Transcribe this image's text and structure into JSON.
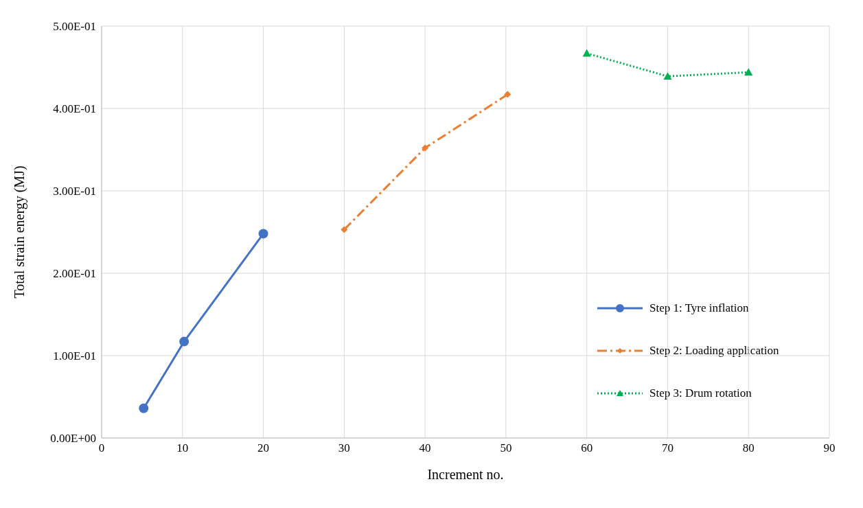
{
  "chart_data": {
    "type": "line",
    "xlabel": "Increment no.",
    "ylabel": "Total strain energy (MJ)",
    "series": [
      {
        "name": "Step 1: Tyre inflation",
        "color": "#4472c4",
        "x": [
          5.2,
          10.2,
          20
        ],
        "values": [
          0.036,
          0.117,
          0.248
        ],
        "marker": "circle",
        "line_style": "solid"
      },
      {
        "name": "Step 2: Loading application",
        "color": "#ed7d31",
        "x": [
          30,
          40,
          50.2
        ],
        "values": [
          0.253,
          0.352,
          0.417
        ],
        "marker": "diamond",
        "line_style": "dashed"
      },
      {
        "name": "Step 3: Drum rotation",
        "color": "#00b050",
        "x": [
          60,
          70,
          80
        ],
        "values": [
          0.467,
          0.439,
          0.444
        ],
        "marker": "triangle",
        "line_style": "dotted"
      }
    ],
    "xlim": [
      0,
      90
    ],
    "xticks": [
      0,
      10,
      20,
      30,
      40,
      50,
      60,
      70,
      80,
      90
    ],
    "ylim": [
      0,
      0.5
    ],
    "yticks": [
      {
        "value": 0,
        "label": "0.00E+00"
      },
      {
        "value": 0.1,
        "label": "1.00E-01"
      },
      {
        "value": 0.2,
        "label": "2.00E-01"
      },
      {
        "value": 0.3,
        "label": "3.00E-01"
      },
      {
        "value": 0.4,
        "label": "4.00E-01"
      },
      {
        "value": 0.5,
        "label": "5.00E-01"
      }
    ],
    "grid": true,
    "legend": "right"
  }
}
